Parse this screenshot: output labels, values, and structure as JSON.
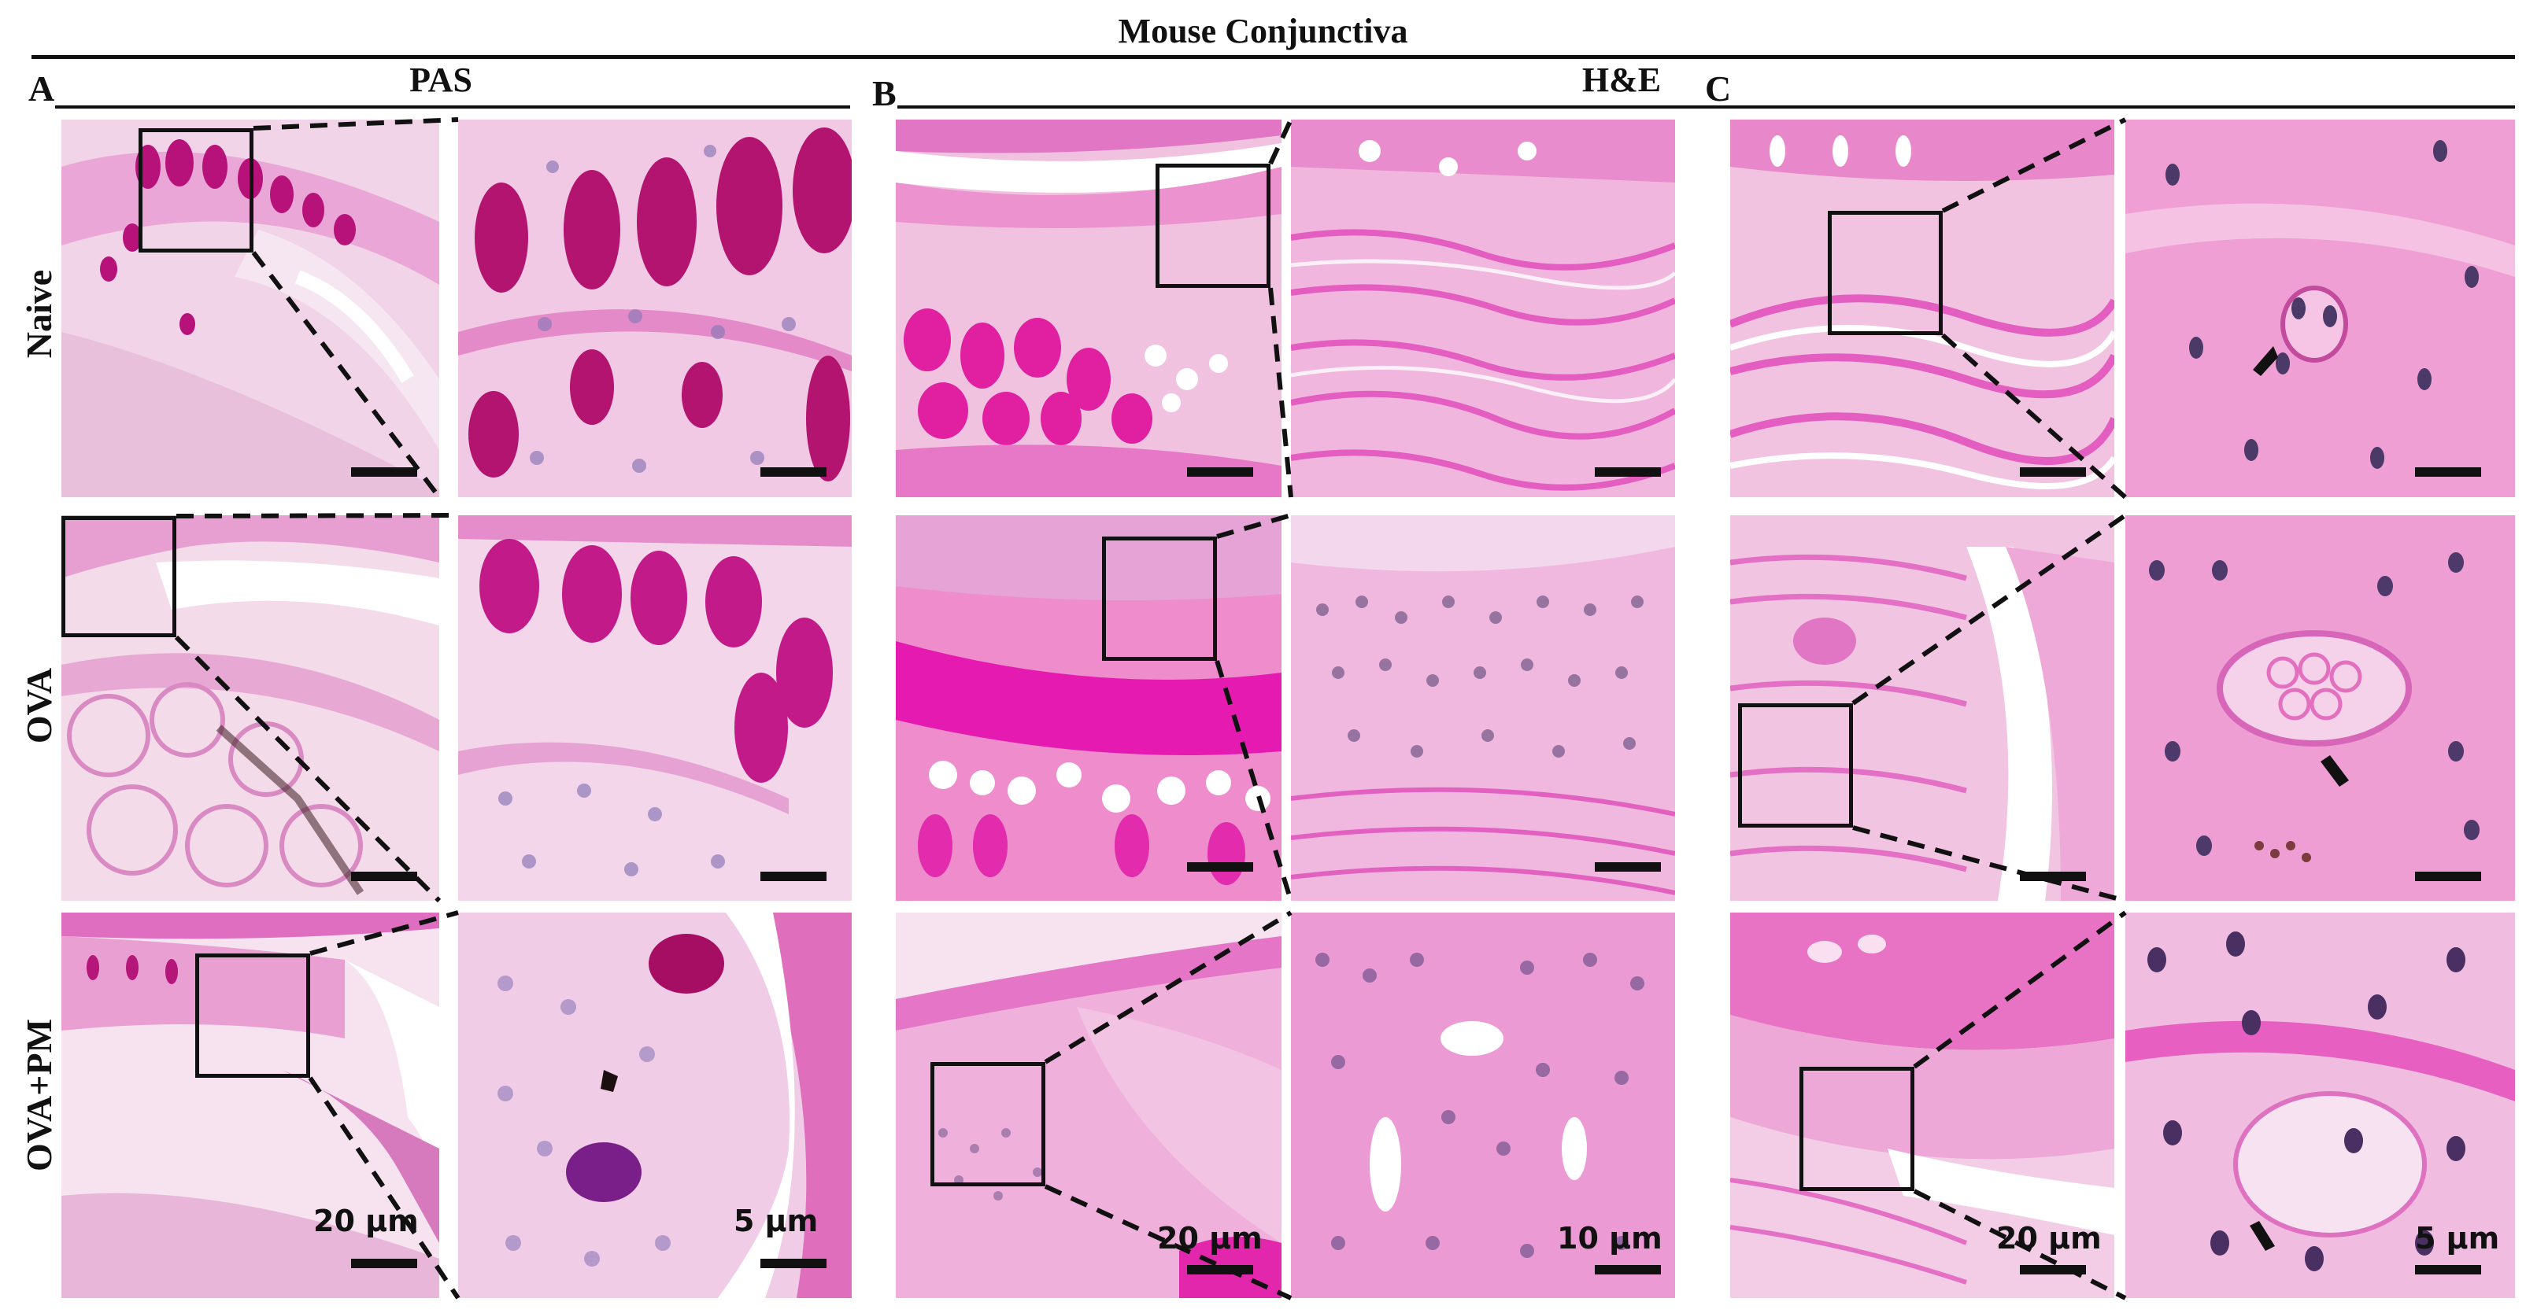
{
  "figure": {
    "title": "Mouse Conjunctiva",
    "panels": [
      {
        "letter": "A",
        "title": "PAS"
      },
      {
        "letter": "B",
        "title": "H&E"
      },
      {
        "letter": "C",
        "title": ""
      }
    ],
    "row_labels": [
      "Naive",
      "OVA",
      "OVA+PM"
    ],
    "scale_labels": {
      "A_low": "20 µm",
      "A_high": "5 µm",
      "B_low": "20 µm",
      "B_high": "10 µm",
      "C_low": "20 µm",
      "C_high": "5 µm"
    },
    "colors": {
      "tissue_background": "#f4c6e2",
      "eosin_pink": "#e85fc0",
      "mucin_magenta": "#c4127a",
      "nuclei": "#5a3a7a",
      "line": "#111111"
    }
  }
}
